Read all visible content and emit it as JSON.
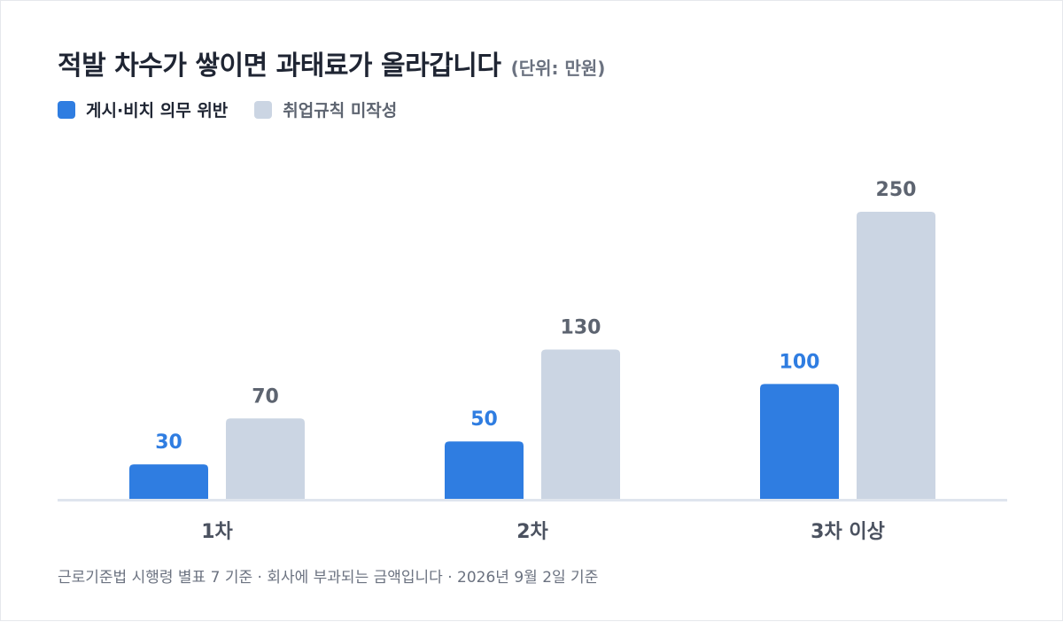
{
  "title": "적발 차수가 쌓이면 과태료가 올라갑니다",
  "unit": "(단위: 만원)",
  "footnote": "근로기준법 시행령 별표 7 기준 · 회사에 부과되는 금액입니다 · 2026년 9월 2일 기준",
  "colors": {
    "series1": "#2f7de1",
    "series2": "#cbd5e3",
    "series1_label": "#2f7de1",
    "series2_label": "#5d6470",
    "axis": "#dfe5ee",
    "text_dark": "#1f2533",
    "text_muted": "#6b7280"
  },
  "chart_data": {
    "type": "bar",
    "title": "적발 차수가 쌓이면 과태료가 올라갑니다",
    "unit": "(단위: 만원)",
    "categories": [
      "1차",
      "2차",
      "3차 이상"
    ],
    "series": [
      {
        "name": "게시·비치 의무 위반",
        "values": [
          30,
          50,
          100
        ]
      },
      {
        "name": "취업규칙 미작성",
        "values": [
          70,
          130,
          250
        ]
      }
    ],
    "ylim": [
      0,
      250
    ],
    "grid": false,
    "legend": "top-left",
    "data_labels": true
  }
}
